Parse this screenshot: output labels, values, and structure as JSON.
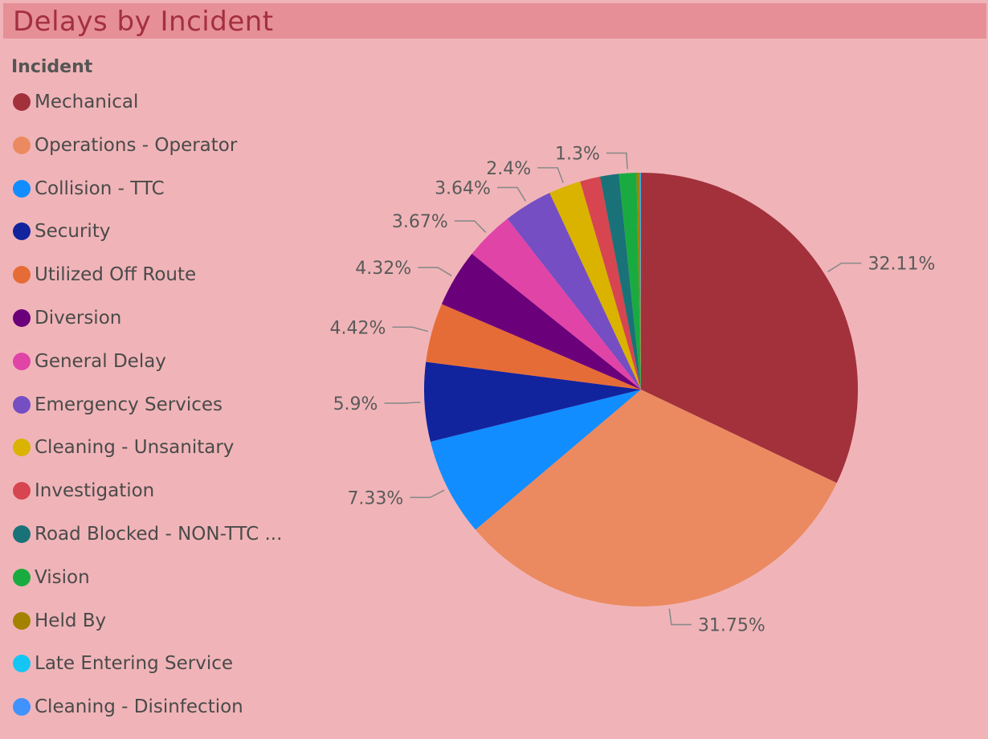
{
  "title": "Delays by Incident",
  "legend_title": "Incident",
  "chart_data": {
    "type": "pie",
    "title": "Delays by Incident",
    "legend_title": "Incident",
    "legend_position": "left",
    "categories": [
      "Mechanical",
      "Operations - Operator",
      "Collision - TTC",
      "Security",
      "Utilized Off Route",
      "Diversion",
      "General Delay",
      "Emergency Services",
      "Cleaning - Unsanitary",
      "Investigation",
      "Road Blocked - NON-TTC ...",
      "Vision",
      "Held By",
      "Late Entering Service",
      "Cleaning - Disinfection"
    ],
    "values": [
      32.11,
      31.75,
      7.33,
      5.9,
      4.42,
      4.32,
      3.67,
      3.64,
      2.4,
      1.5,
      1.4,
      1.3,
      0.25,
      0.05,
      0.03
    ],
    "labels": [
      "32.11%",
      "31.75%",
      "7.33%",
      "5.9%",
      "4.42%",
      "4.32%",
      "3.67%",
      "3.64%",
      "2.4%",
      "",
      "",
      "1.3%",
      "",
      "",
      ""
    ],
    "colors": [
      "#a2313c",
      "#eb8a60",
      "#118dff",
      "#12239e",
      "#e66c37",
      "#6b007b",
      "#e044a7",
      "#744ec2",
      "#d9b300",
      "#d64550",
      "#197278",
      "#1aab40",
      "#a38200",
      "#15c6f4",
      "#4092ff"
    ]
  }
}
